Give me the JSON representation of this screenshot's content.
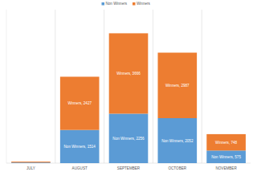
{
  "chart_data": {
    "type": "bar",
    "stacked": true,
    "data_labels": true,
    "grid": false,
    "tick_labels": "x",
    "legend": "top",
    "categories": [
      "JULY",
      "AUGUST",
      "SEPTEMBER",
      "OCTOBER",
      "NOVEMBER"
    ],
    "ylim": [
      0,
      7000
    ],
    "yticks": [],
    "series": [
      {
        "name": "Non Winners",
        "color": "#5b9bd5",
        "values": [
          30,
          1514,
          2256,
          2052,
          575
        ],
        "value_labels": [
          null,
          "Non Winners, 1514",
          "Non Winners, 2256",
          "Non Winners, 2052",
          "Non Winners, 575"
        ]
      },
      {
        "name": "Winners",
        "color": "#ed7d31",
        "values": [
          40,
          2427,
          3666,
          2987,
          748
        ],
        "value_labels": [
          null,
          "Winners, 2427",
          "Winners, 3666",
          "Winners, 2987",
          "Winners, 748"
        ]
      }
    ]
  }
}
